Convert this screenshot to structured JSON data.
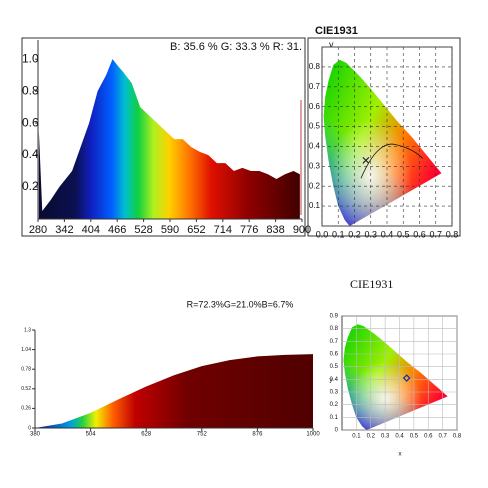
{
  "chart_data": [
    {
      "type": "area",
      "title": "B: 35.6 %  G: 33.3 %  R: 31.",
      "x": [
        282,
        290,
        310,
        330,
        345,
        360,
        380,
        400,
        420,
        440,
        455,
        470,
        480,
        500,
        520,
        540,
        560,
        580,
        600,
        620,
        640,
        660,
        680,
        700,
        720,
        740,
        760,
        780,
        800,
        820,
        840,
        860,
        880,
        895
      ],
      "values": [
        0.55,
        0.05,
        0.12,
        0.2,
        0.25,
        0.3,
        0.45,
        0.6,
        0.8,
        0.9,
        1.0,
        0.95,
        0.92,
        0.85,
        0.7,
        0.65,
        0.6,
        0.55,
        0.5,
        0.5,
        0.45,
        0.42,
        0.4,
        0.35,
        0.35,
        0.3,
        0.32,
        0.3,
        0.3,
        0.28,
        0.25,
        0.28,
        0.3,
        0.28
      ],
      "xlim": [
        280,
        900
      ],
      "xticks": [
        280,
        342,
        404,
        466,
        528,
        590,
        652,
        714,
        776,
        838,
        900
      ],
      "ylim": [
        0,
        1.12
      ],
      "yticks": [
        0.2,
        0.4,
        0.6,
        0.8,
        {
          "value": 1,
          "label": "1.0"
        }
      ]
    },
    {
      "type": "scatter",
      "title": "CIE1931",
      "y_label": "y",
      "x": [
        0.27
      ],
      "values": [
        0.33
      ],
      "xlim": [
        0,
        0.8
      ],
      "xticks": [
        {
          "value": 0,
          "label": "0.0"
        },
        0.1,
        0.2,
        0.3,
        0.4,
        0.5,
        0.6,
        0.7,
        0.8
      ],
      "ylim": [
        0,
        0.9
      ],
      "yticks": [
        0.1,
        0.2,
        0.3,
        0.4,
        0.5,
        0.6,
        0.7,
        0.8
      ],
      "grid": true
    },
    {
      "type": "area",
      "title": "R=72.3%G=21.0%B=6.7%",
      "x": [
        380,
        440,
        504,
        566,
        628,
        690,
        752,
        814,
        876,
        938,
        1000
      ],
      "values": [
        0.0,
        0.06,
        0.2,
        0.38,
        0.55,
        0.7,
        0.82,
        0.9,
        0.95,
        0.97,
        0.98
      ],
      "xlim": [
        380,
        1000
      ],
      "xticks": [
        380,
        504,
        628,
        752,
        876,
        1000
      ],
      "ylim": [
        0,
        1.3
      ],
      "yticks": [
        0,
        0.26,
        0.52,
        0.78,
        1.04,
        1.3
      ]
    },
    {
      "type": "scatter",
      "title": "CIE1931",
      "x_label": "x",
      "y_label": "y",
      "x": [
        0.45
      ],
      "values": [
        0.41
      ],
      "xlim": [
        0,
        0.8
      ],
      "xticks": [
        0.1,
        0.2,
        0.3,
        0.4,
        0.5,
        0.6,
        0.7,
        0.8
      ],
      "ylim": [
        0,
        0.9
      ],
      "yticks": [
        0,
        0.1,
        0.2,
        0.3,
        0.4,
        0.5,
        0.6,
        0.7,
        0.8,
        0.9
      ],
      "grid": true
    }
  ]
}
